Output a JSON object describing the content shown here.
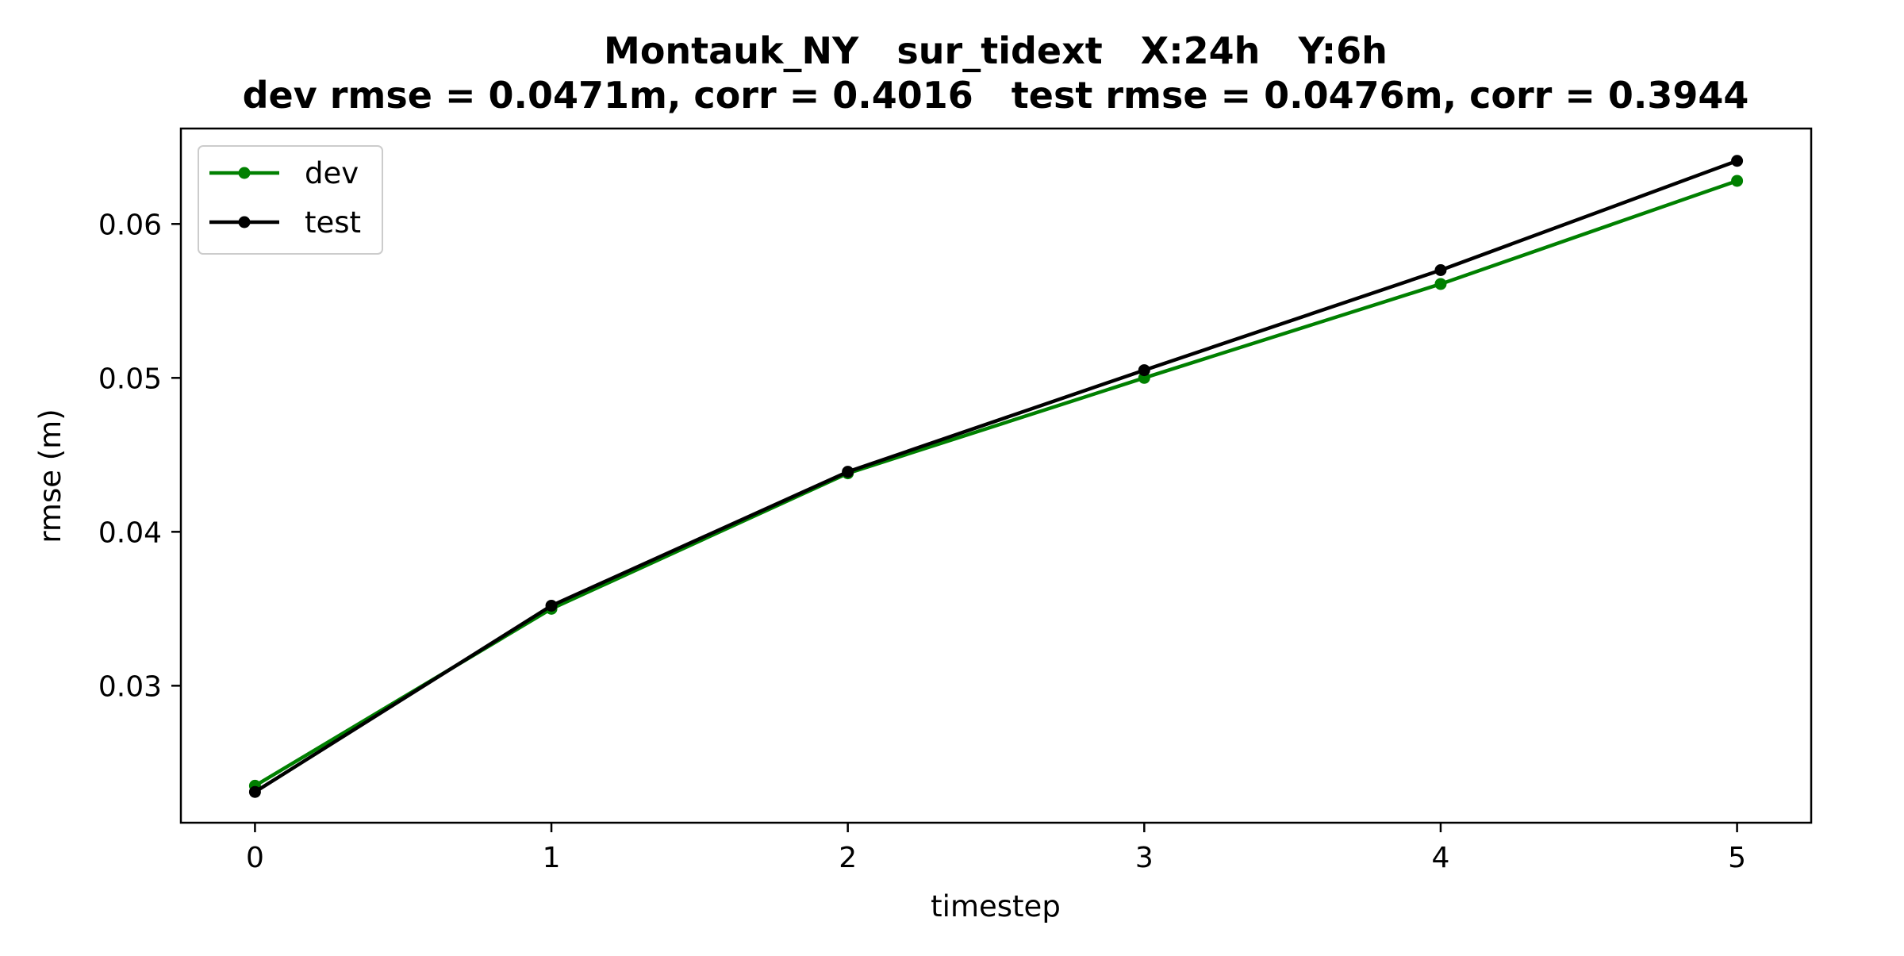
{
  "chart_data": {
    "type": "line",
    "title_line1": "Montauk_NY   sur_tidext   X:24h   Y:6h",
    "title_line2": "dev rmse = 0.0471m, corr = 0.4016   test rmse = 0.0476m, corr = 0.3944",
    "xlabel": "timestep",
    "ylabel": "rmse (m)",
    "x": [
      0,
      1,
      2,
      3,
      4,
      5
    ],
    "xlim": [
      -0.25,
      5.25
    ],
    "ylim": [
      0.0211,
      0.0662
    ],
    "xticks": [
      "0",
      "1",
      "2",
      "3",
      "4",
      "5"
    ],
    "yticks": [
      "0.03",
      "0.04",
      "0.05",
      "0.06"
    ],
    "grid": false,
    "legend_position": "top-left",
    "series": [
      {
        "name": "dev",
        "color": "#008000",
        "values": [
          0.0235,
          0.035,
          0.0438,
          0.05,
          0.0561,
          0.0628
        ]
      },
      {
        "name": "test",
        "color": "#000000",
        "values": [
          0.0231,
          0.0352,
          0.0439,
          0.0505,
          0.057,
          0.0641
        ]
      }
    ]
  }
}
